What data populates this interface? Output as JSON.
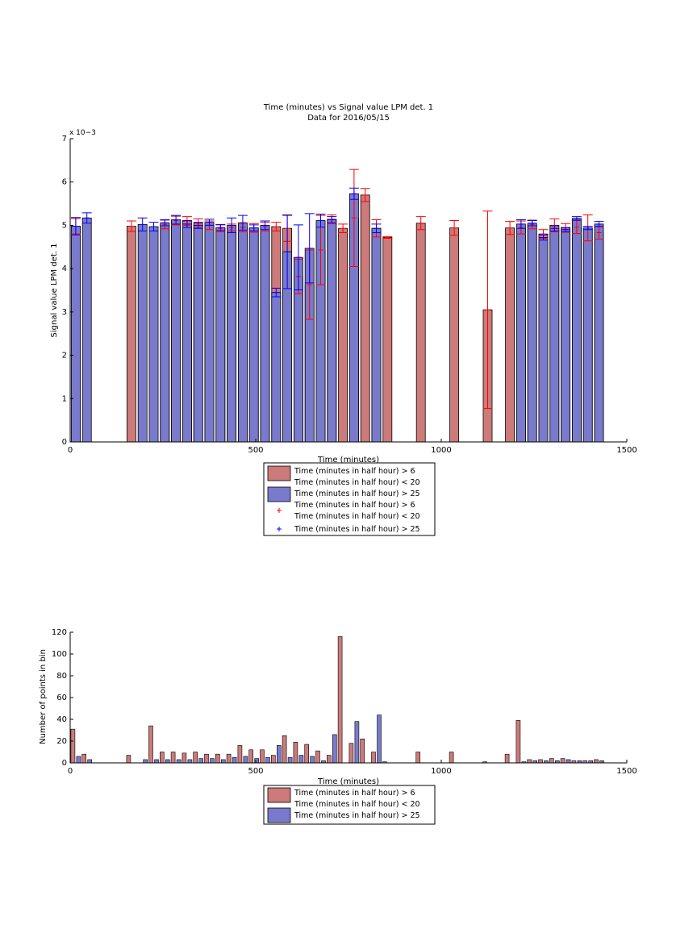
{
  "colors": {
    "red_fill": "#cc7a7a",
    "blue_fill": "#7a7acc",
    "red_err": "#ff0000",
    "blue_err": "#0000ff"
  },
  "chart_data": [
    {
      "type": "bar",
      "title": "Time (minutes) vs Signal value LPM det. 1",
      "subtitle": "Data for 2016/05/15",
      "xlabel": "Time (minutes)",
      "ylabel": "Signal value LPM det. 1",
      "y_exponent": "x 10−3",
      "xlim": [
        0,
        1500
      ],
      "ylim": [
        0,
        7
      ],
      "xticks": [
        0,
        500,
        1000,
        1500
      ],
      "yticks": [
        0,
        1,
        2,
        3,
        4,
        5,
        6,
        7
      ],
      "legend": {
        "placement": "below",
        "entries": [
          {
            "label": "Time (minutes in half hour) > 6",
            "label2": "Time (minutes in half hour) < 20",
            "marker": "red-bar"
          },
          {
            "label": "Time (minutes in half hour) > 25",
            "marker": "blue-bar"
          },
          {
            "label": "Time (minutes in half hour) > 6",
            "label2": "Time (minutes in half hour) < 20",
            "marker": "red-plus"
          },
          {
            "label": "Time (minutes in half hour) > 25",
            "marker": "blue-plus"
          }
        ]
      },
      "series": [
        {
          "name": "red",
          "x": [
            15,
            165,
            255,
            285,
            315,
            345,
            375,
            405,
            435,
            465,
            495,
            525,
            555,
            585,
            615,
            645,
            675,
            705,
            735,
            765,
            795,
            825,
            855,
            945,
            1035,
            1125,
            1185,
            1215,
            1245,
            1275,
            1305,
            1335,
            1365,
            1395,
            1425
          ],
          "values": [
            4.98,
            4.98,
            5.02,
            5.11,
            5.1,
            5.05,
            5.0,
            4.93,
            4.95,
            4.95,
            4.94,
            4.97,
            4.97,
            4.93,
            3.82,
            3.63,
            4.43,
            5.14,
            4.93,
            5.17,
            5.7,
            4.93,
            4.72,
            5.05,
            4.94,
            3.05,
            4.94,
            4.95,
            5.02,
            4.8,
            5.0,
            4.94,
            4.96,
            4.94,
            4.83
          ],
          "err": [
            0.18,
            0.12,
            0.1,
            0.1,
            0.1,
            0.1,
            0.1,
            0.08,
            0.08,
            0.1,
            0.1,
            0.1,
            0.1,
            0.3,
            0.4,
            0.8,
            0.8,
            0.1,
            0.1,
            1.12,
            0.15,
            0.2,
            0.02,
            0.15,
            0.17,
            2.28,
            0.15,
            0.15,
            0.1,
            0.1,
            0.15,
            0.1,
            0.15,
            0.3,
            0.15
          ]
        },
        {
          "name": "blue",
          "x": [
            15,
            45,
            195,
            225,
            255,
            285,
            315,
            345,
            375,
            405,
            435,
            465,
            495,
            525,
            555,
            585,
            615,
            645,
            675,
            705,
            765,
            825,
            1215,
            1245,
            1275,
            1305,
            1335,
            1365,
            1395,
            1425
          ],
          "values": [
            4.98,
            5.17,
            5.02,
            4.97,
            5.06,
            5.13,
            5.03,
            5.0,
            5.07,
            4.95,
            5.0,
            5.06,
            4.94,
            5.0,
            3.45,
            4.39,
            4.26,
            4.47,
            5.11,
            5.13,
            5.73,
            4.93,
            5.03,
            5.05,
            4.72,
            4.93,
            4.9,
            5.16,
            4.94,
            5.03
          ],
          "err": [
            0.2,
            0.12,
            0.15,
            0.1,
            0.07,
            0.1,
            0.08,
            0.07,
            0.07,
            0.07,
            0.17,
            0.17,
            0.07,
            0.1,
            0.1,
            0.85,
            0.75,
            0.8,
            0.15,
            0.07,
            0.13,
            0.1,
            0.1,
            0.06,
            0.06,
            0.06,
            0.05,
            0.04,
            0.04,
            0.06
          ]
        }
      ]
    },
    {
      "type": "bar",
      "xlabel": "Time (minutes)",
      "ylabel": "Number of points in bin",
      "xlim": [
        0,
        1500
      ],
      "ylim": [
        0,
        120
      ],
      "xticks": [
        0,
        500,
        1000,
        1500
      ],
      "yticks": [
        0,
        20,
        40,
        60,
        80,
        100,
        120
      ],
      "legend": {
        "placement": "below",
        "entries": [
          {
            "label": "Time (minutes in half hour) > 6",
            "label2": "Time (minutes in half hour) < 20",
            "marker": "red-bar"
          },
          {
            "label": "Time (minutes in half hour) > 25",
            "marker": "blue-bar"
          }
        ]
      },
      "series": [
        {
          "name": "red",
          "x": [
            15,
            45,
            165,
            225,
            255,
            285,
            315,
            345,
            375,
            405,
            435,
            465,
            495,
            525,
            555,
            585,
            615,
            645,
            675,
            705,
            735,
            765,
            795,
            825,
            855,
            945,
            1035,
            1125,
            1185,
            1215,
            1245,
            1275,
            1305,
            1335,
            1365,
            1395,
            1425
          ],
          "values": [
            31,
            8,
            7,
            34,
            10,
            10,
            9,
            10,
            8,
            8,
            8,
            16,
            12,
            12,
            7,
            25,
            19,
            17,
            11,
            7,
            116,
            18,
            22,
            10,
            1,
            10,
            10,
            1,
            8,
            39,
            3,
            3,
            4,
            4,
            2,
            2,
            3
          ]
        },
        {
          "name": "blue",
          "x": [
            15,
            45,
            195,
            225,
            255,
            285,
            315,
            345,
            375,
            405,
            435,
            465,
            495,
            525,
            555,
            585,
            615,
            645,
            675,
            705,
            765,
            825,
            1215,
            1245,
            1275,
            1305,
            1335,
            1365,
            1395,
            1425
          ],
          "values": [
            6,
            3,
            3,
            3,
            3,
            3,
            3,
            4,
            4,
            3,
            5,
            6,
            4,
            5,
            16,
            5,
            7,
            6,
            2,
            26,
            38,
            44,
            1,
            2,
            2,
            2,
            3,
            2,
            2,
            2
          ]
        }
      ]
    }
  ]
}
